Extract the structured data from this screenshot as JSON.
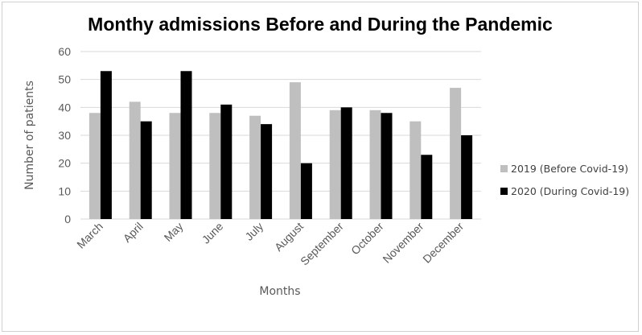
{
  "chart_data": {
    "type": "bar",
    "title": "Monthy admissions Before and During the Pandemic",
    "xlabel": "Months",
    "ylabel": "Number of patients",
    "ylim": [
      0,
      60
    ],
    "yticks": [
      0,
      10,
      20,
      30,
      40,
      50,
      60
    ],
    "grid": true,
    "legend_position": "right",
    "categories": [
      "March",
      "April",
      "May",
      "June",
      "July",
      "August",
      "September",
      "October",
      "November",
      "December"
    ],
    "series": [
      {
        "name": "2019 (Before Covid-19)",
        "color": "#bfbfbf",
        "values": [
          38,
          42,
          38,
          38,
          37,
          49,
          39,
          39,
          35,
          47
        ]
      },
      {
        "name": "2020 (During Covid-19)",
        "color": "#000000",
        "values": [
          53,
          35,
          53,
          41,
          34,
          20,
          40,
          38,
          23,
          30
        ]
      }
    ]
  }
}
